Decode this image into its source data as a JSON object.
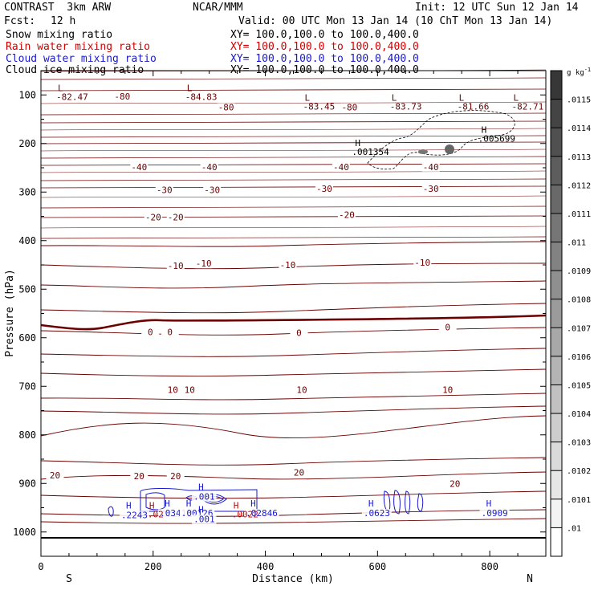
{
  "header": {
    "title": "CONTRAST  3km ARW",
    "center": "NCAR/MMM",
    "init": "Init: 12 UTC Sun 12 Jan 14",
    "fcst_label": "Fcst:",
    "fcst_value": "12 h",
    "valid": "Valid: 00 UTC Mon 13 Jan 14 (10 ChT Mon 13 Jan 14)"
  },
  "fields": [
    {
      "name": "Snow mixing ratio",
      "xy": "XY= 100.0,100.0 to 100.0,400.0",
      "color": "#000000"
    },
    {
      "name": "Rain water mixing ratio",
      "xy": "XY= 100.0,100.0 to 100.0,400.0",
      "color": "#d40000"
    },
    {
      "name": "Cloud water mixing ratio",
      "xy": "XY= 100.0,100.0 to 100.0,400.0",
      "color": "#1a1acc"
    },
    {
      "name": "Cloud ice mixing ratio",
      "xy": "XY= 100.0,100.0 to 100.0,400.0",
      "color": "#000000"
    }
  ],
  "chart_data": {
    "type": "cross-section",
    "xlabel": "Distance (km)",
    "ylabel": "Pressure (hPa)",
    "xlim": [
      0,
      900
    ],
    "ylim": [
      1050,
      50
    ],
    "x_ticks": [
      0,
      200,
      400,
      600,
      800
    ],
    "y_ticks": [
      100,
      200,
      300,
      400,
      500,
      600,
      700,
      800,
      900,
      1000
    ],
    "x_end_labels": [
      "S",
      "N"
    ],
    "colorbar": {
      "unit": "g kg",
      "unit_exp": "-1",
      "ticks": [
        ".01",
        ".0101",
        ".0102",
        ".0103",
        ".0104",
        ".0105",
        ".0106",
        ".0107",
        ".0108",
        ".0109",
        ".011",
        ".0111",
        ".0112",
        ".0113",
        ".0114",
        ".0115"
      ]
    },
    "temperature_labels": [
      {
        "text": "-80",
        "x": 145,
        "p": 108
      },
      {
        "text": "-80",
        "x": 330,
        "p": 130
      },
      {
        "text": "-80",
        "x": 550,
        "p": 130
      },
      {
        "text": "-40",
        "x": 175,
        "p": 253
      },
      {
        "text": "-40",
        "x": 300,
        "p": 253
      },
      {
        "text": "-40",
        "x": 535,
        "p": 253
      },
      {
        "text": "-40",
        "x": 695,
        "p": 253
      },
      {
        "text": "-30",
        "x": 220,
        "p": 300
      },
      {
        "text": "-30",
        "x": 305,
        "p": 300
      },
      {
        "text": "-30",
        "x": 505,
        "p": 298
      },
      {
        "text": "-30",
        "x": 695,
        "p": 298
      },
      {
        "text": "-20",
        "x": 200,
        "p": 357
      },
      {
        "text": "-20",
        "x": 240,
        "p": 357
      },
      {
        "text": "-20",
        "x": 545,
        "p": 352
      },
      {
        "text": "-10",
        "x": 240,
        "p": 457
      },
      {
        "text": "-10",
        "x": 290,
        "p": 452
      },
      {
        "text": "-10",
        "x": 440,
        "p": 455
      },
      {
        "text": "-10",
        "x": 680,
        "p": 450
      },
      {
        "text": "0",
        "x": 195,
        "p": 593
      },
      {
        "text": "0",
        "x": 230,
        "p": 593
      },
      {
        "text": "0",
        "x": 460,
        "p": 595
      },
      {
        "text": "0",
        "x": 725,
        "p": 583
      },
      {
        "text": "10",
        "x": 235,
        "p": 712
      },
      {
        "text": "10",
        "x": 265,
        "p": 712
      },
      {
        "text": "10",
        "x": 465,
        "p": 712
      },
      {
        "text": "10",
        "x": 725,
        "p": 712
      },
      {
        "text": "20",
        "x": 25,
        "p": 888
      },
      {
        "text": "20",
        "x": 175,
        "p": 890
      },
      {
        "text": "20",
        "x": 240,
        "p": 890
      },
      {
        "text": "20",
        "x": 460,
        "p": 882
      },
      {
        "text": "20",
        "x": 738,
        "p": 905
      }
    ],
    "low_markers": [
      {
        "label": "L",
        "value": "-82.47",
        "x": 30,
        "p": 92
      },
      {
        "label": "L",
        "value": "-84.83",
        "x": 260,
        "p": 92
      },
      {
        "label": "L",
        "value": "-83.45",
        "x": 470,
        "p": 112
      },
      {
        "label": "L",
        "value": "-83.73",
        "x": 625,
        "p": 112
      },
      {
        "label": "L",
        "value": "-81.66",
        "x": 745,
        "p": 112
      },
      {
        "label": "L",
        "value": "-82.71",
        "x": 842,
        "p": 112
      }
    ],
    "snow_maxima": [
      {
        "label": "H",
        "value": ".001354",
        "x": 560,
        "p": 205
      },
      {
        "label": "H",
        "value": ".005699",
        "x": 785,
        "p": 178
      }
    ],
    "rain_maxima": [
      {
        "label": "H",
        "value": ".02",
        "x": 193,
        "p": 952
      },
      {
        "label": "H",
        "value": ".0022",
        "x": 343,
        "p": 952
      }
    ],
    "cloud_maxima": [
      {
        "label": "H",
        "value": ".2243",
        "x": 143,
        "p": 970
      },
      {
        "label": "H",
        "value": ".0341",
        "x": 212,
        "p": 966
      },
      {
        "label": "H",
        "value": ".00126",
        "x": 250,
        "p": 966
      },
      {
        "label": "H",
        "value": ".001",
        "x": 272,
        "p": 932
      },
      {
        "label": "H",
        "value": ".001",
        "x": 272,
        "p": 978
      },
      {
        "label": "H",
        "value": ".02846",
        "x": 365,
        "p": 966
      },
      {
        "label": "H",
        "value": ".0623",
        "x": 575,
        "p": 966
      },
      {
        "label": "H",
        "value": ".0909",
        "x": 785,
        "p": 966
      }
    ]
  }
}
